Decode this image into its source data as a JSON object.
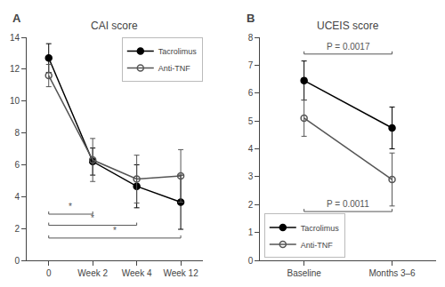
{
  "chart_data": [
    {
      "type": "line",
      "title": "CAI score",
      "label": "A",
      "categories": [
        "0",
        "Week 2",
        "Week 4",
        "Week 12"
      ],
      "series": [
        {
          "name": "Tacrolimus",
          "color": "#000000",
          "marker": "circle",
          "values": [
            12.7,
            6.2,
            4.65,
            3.65
          ],
          "errors": [
            0.9,
            0.85,
            1.35,
            1.7
          ]
        },
        {
          "name": "Anti-TNF",
          "color": "#555555",
          "marker": "circle-open",
          "values": [
            11.6,
            6.3,
            5.1,
            5.3
          ],
          "errors": [
            0.7,
            1.35,
            1.5,
            1.65
          ]
        }
      ],
      "ylim": [
        0,
        14
      ],
      "yticks": [
        0,
        2,
        4,
        6,
        8,
        10,
        12,
        14
      ],
      "grid": false,
      "legend": "upper right",
      "annotations": [
        {
          "from": "0",
          "to": "Week 2",
          "y": 2.9,
          "text": "*"
        },
        {
          "from": "0",
          "to": "Week 4",
          "y": 2.2,
          "text": "*"
        },
        {
          "from": "0",
          "to": "Week 12",
          "y": 1.4,
          "text": "*"
        }
      ]
    },
    {
      "type": "line",
      "title": "UCEIS score",
      "label": "B",
      "categories": [
        "Baseline",
        "Months 3–6"
      ],
      "series": [
        {
          "name": "Tacrolimus",
          "color": "#000000",
          "marker": "circle",
          "values": [
            6.45,
            4.75
          ],
          "errors": [
            0.7,
            0.75
          ]
        },
        {
          "name": "Anti-TNF",
          "color": "#555555",
          "marker": "circle-open",
          "values": [
            5.1,
            2.9
          ],
          "errors": [
            0.65,
            0.95
          ]
        }
      ],
      "ylim": [
        0,
        8
      ],
      "yticks": [
        0,
        1,
        2,
        3,
        4,
        5,
        6,
        7,
        8
      ],
      "grid": false,
      "legend": "lower left",
      "annotations": [
        {
          "from": "Baseline",
          "to": "Months 3–6",
          "y": 7.4,
          "text": "P = 0.0017"
        },
        {
          "from": "Baseline",
          "to": "Months 3–6",
          "y": 1.75,
          "text": "P = 0.0011"
        }
      ]
    }
  ]
}
